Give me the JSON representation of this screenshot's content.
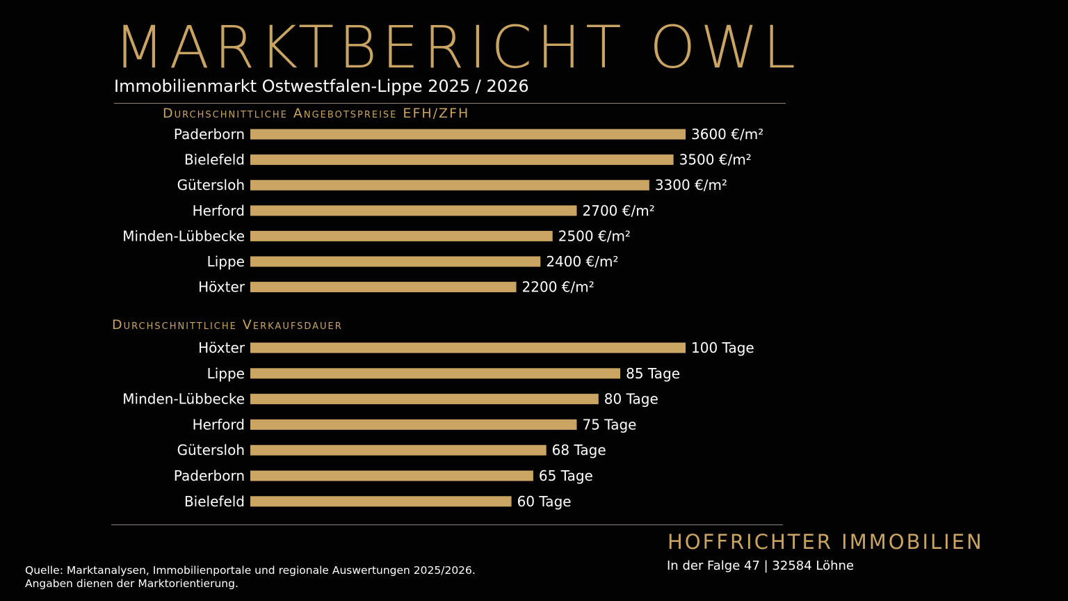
{
  "title": "MARKTBERICHT OWL",
  "subtitle": "Immobilienmarkt Ostwestfalen-Lippe 2025 / 2026",
  "colors": {
    "accent": "#c9a463",
    "background": "#020202",
    "text": "#ffffff",
    "rule": "#8c8578"
  },
  "chart_data": [
    {
      "type": "bar",
      "orientation": "horizontal",
      "title": "Durchschnittliche Angebotspreise EFH/ZFH",
      "categories": [
        "Paderborn",
        "Bielefeld",
        "Gütersloh",
        "Herford",
        "Minden-Lübbecke",
        "Lippe",
        "Höxter"
      ],
      "values": [
        3600,
        3500,
        3300,
        2700,
        2500,
        2400,
        2200
      ],
      "labels": [
        "3600 €/m²",
        "3500 €/m²",
        "3300 €/m²",
        "2700 €/m²",
        "2500 €/m²",
        "2400 €/m²",
        "2200 €/m²"
      ],
      "unit": "€/m²",
      "grid": false
    },
    {
      "type": "bar",
      "orientation": "horizontal",
      "title": "Durchschnittliche Verkaufsdauer",
      "categories": [
        "Höxter",
        "Lippe",
        "Minden-Lübbecke",
        "Herford",
        "Gütersloh",
        "Paderborn",
        "Bielefeld"
      ],
      "values": [
        100,
        85,
        80,
        75,
        68,
        65,
        60
      ],
      "labels": [
        "100 Tage",
        "85 Tage",
        "80 Tage",
        "75 Tage",
        "68 Tage",
        "65 Tage",
        "60 Tage"
      ],
      "unit": "Tage",
      "grid": false
    }
  ],
  "footer": {
    "brand": "HOFFRICHTER IMMOBILIEN",
    "address": "In der Falge 47 |  32584 Löhne",
    "source_line1": "Quelle: Marktanalysen, Immobilienportale und regionale Auswertungen 2025/2026.",
    "source_line2": "Angaben dienen der Marktorientierung."
  }
}
